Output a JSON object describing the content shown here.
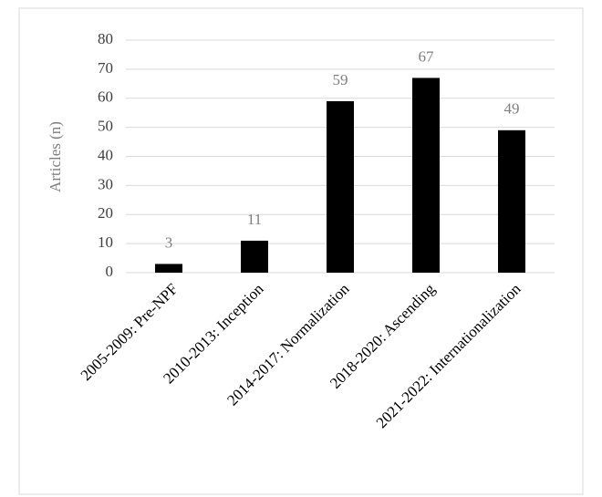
{
  "chart_data": {
    "type": "bar",
    "y_label": "Articles (n)",
    "categories": [
      "2005-2009: Pre-NPF",
      "2010-2013: Inception",
      "2014-2017: Normalization",
      "2018-2020: Ascending",
      "2021-2022: Internationalization"
    ],
    "values": [
      3,
      11,
      59,
      67,
      49
    ],
    "color": "#000000",
    "ylim": [
      0,
      80
    ],
    "yticks": [
      0,
      10,
      20,
      30,
      40,
      50,
      60,
      70,
      80
    ],
    "grid": true,
    "data_labels": true
  }
}
